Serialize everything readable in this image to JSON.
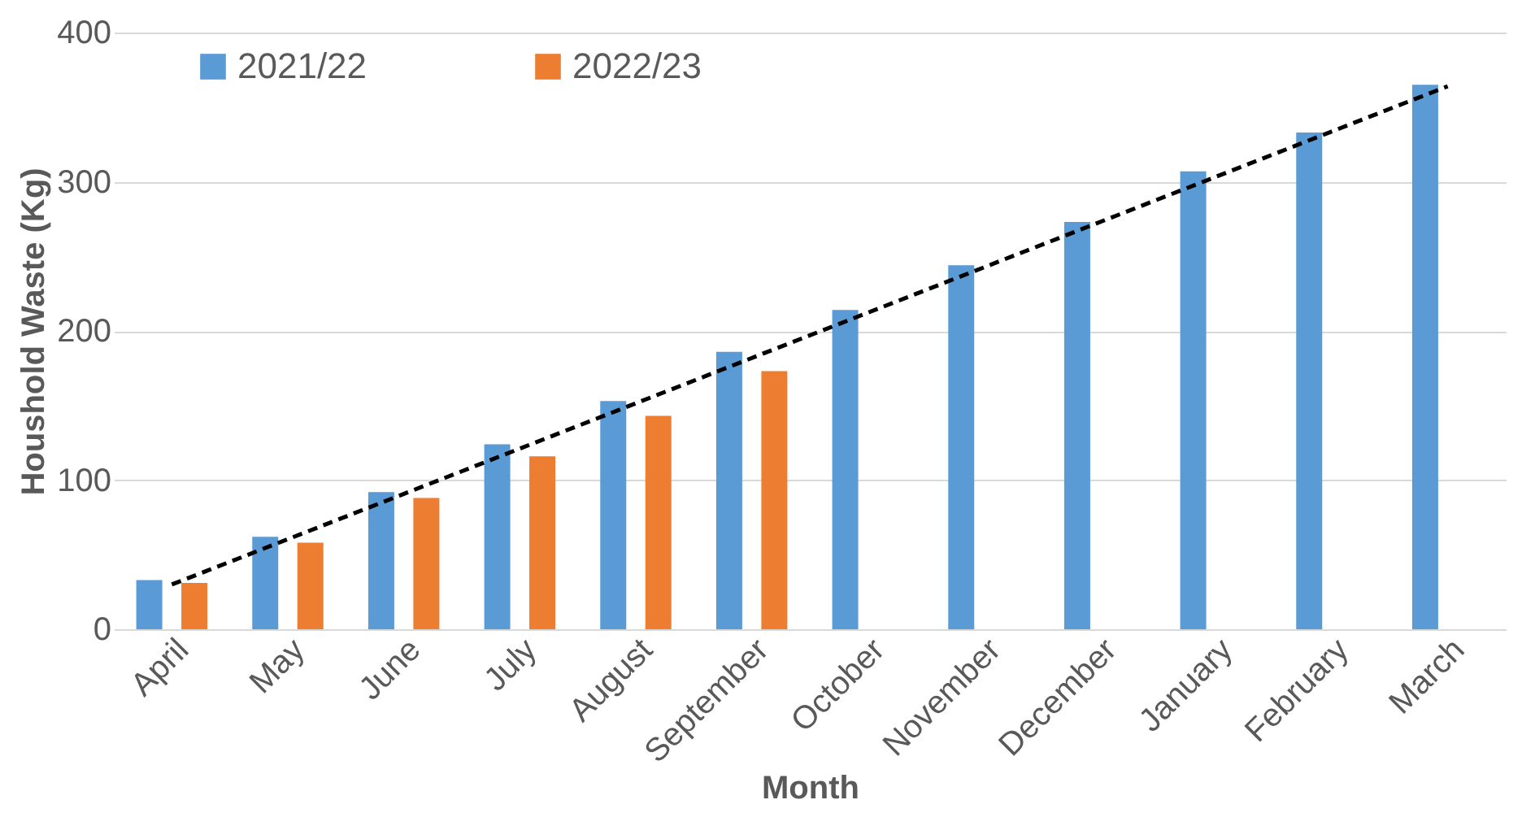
{
  "chart_data": {
    "type": "bar",
    "xlabel": "Month",
    "ylabel": "Houshold Waste (Kg)",
    "categories": [
      "April",
      "May",
      "June",
      "July",
      "August",
      "September",
      "October",
      "November",
      "December",
      "January",
      "February",
      "March"
    ],
    "ylim": [
      0,
      400
    ],
    "yticks": [
      0,
      100,
      200,
      300,
      400
    ],
    "grid": "y",
    "legend": "top left",
    "series": [
      {
        "name": "2021/22",
        "color": "#5b9bd5",
        "values": [
          33,
          62,
          92,
          124,
          153,
          186,
          214,
          244,
          273,
          307,
          333,
          365
        ]
      },
      {
        "name": "2022/23",
        "color": "#ed7d31",
        "values": [
          31,
          58,
          88,
          116,
          143,
          173,
          null,
          null,
          null,
          null,
          null,
          null
        ]
      },
      {
        "type": "line",
        "color": "#000000",
        "line_style": "dashed",
        "marker": "none",
        "x": [
          "April",
          "March"
        ],
        "values": [
          30,
          364
        ]
      }
    ]
  }
}
